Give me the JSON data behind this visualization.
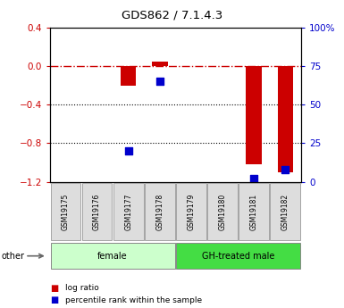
{
  "title": "GDS862 / 7.1.4.3",
  "samples": [
    "GSM19175",
    "GSM19176",
    "GSM19177",
    "GSM19178",
    "GSM19179",
    "GSM19180",
    "GSM19181",
    "GSM19182"
  ],
  "log_ratio": [
    0,
    0,
    -0.2,
    0.05,
    0,
    0,
    -1.02,
    -1.1
  ],
  "percentile_rank": [
    null,
    null,
    20,
    65,
    null,
    null,
    2,
    8
  ],
  "ylim_left": [
    -1.2,
    0.4
  ],
  "ylim_right": [
    0,
    100
  ],
  "yticks_left": [
    -1.2,
    -0.8,
    -0.4,
    0,
    0.4
  ],
  "yticks_right": [
    0,
    25,
    50,
    75,
    100
  ],
  "group_female": {
    "label": "female",
    "start": 0,
    "end": 3,
    "color": "#CCFFCC",
    "edgecolor": "#888888"
  },
  "group_male": {
    "label": "GH-treated male",
    "start": 4,
    "end": 7,
    "color": "#44DD44",
    "edgecolor": "#888888"
  },
  "bar_color": "#CC0000",
  "dot_color": "#0000CC",
  "zero_line_color": "#CC0000",
  "bar_width": 0.5,
  "legend_items": [
    {
      "label": "log ratio",
      "color": "#CC0000"
    },
    {
      "label": "percentile rank within the sample",
      "color": "#0000CC"
    }
  ]
}
